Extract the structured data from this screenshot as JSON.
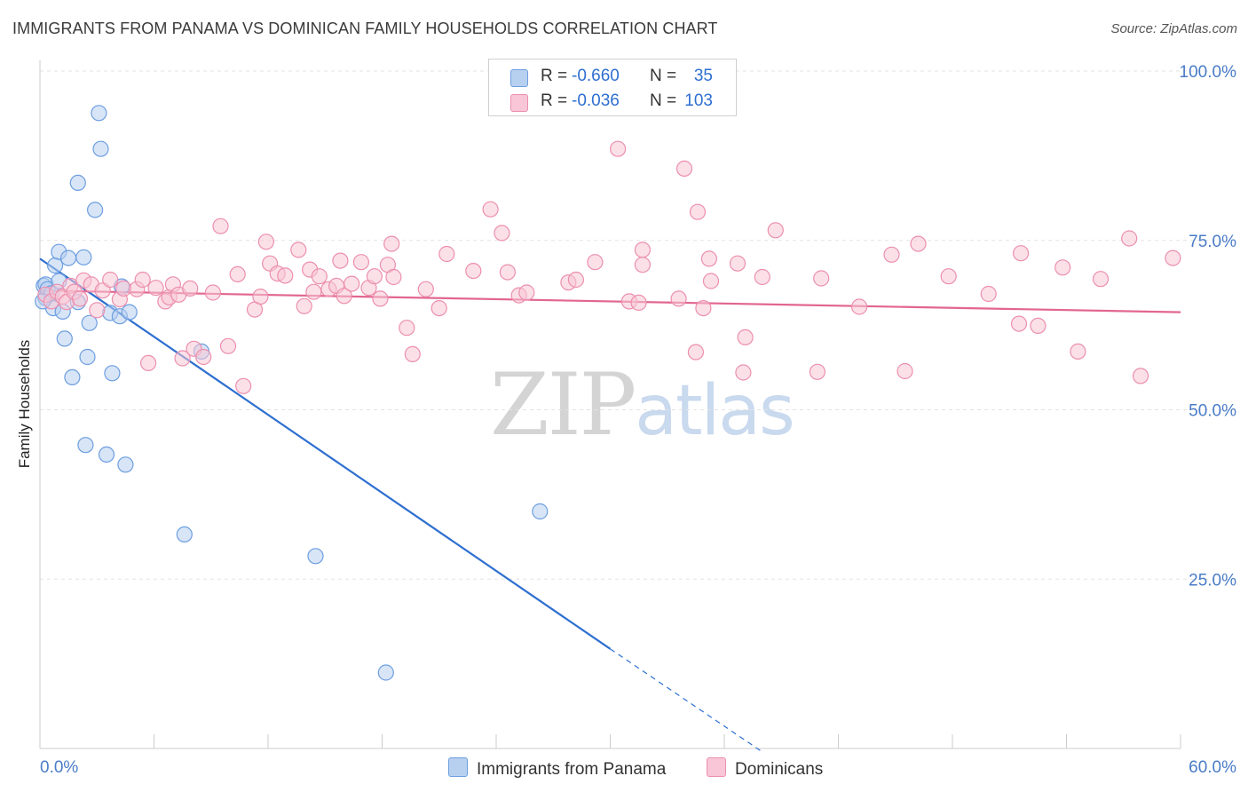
{
  "title": "IMMIGRANTS FROM PANAMA VS DOMINICAN FAMILY HOUSEHOLDS CORRELATION CHART",
  "source": "Source: ZipAtlas.com",
  "watermark": {
    "zip": "ZIP",
    "atlas": "atlas"
  },
  "legend": {
    "rows": [
      {
        "r_label": "R =",
        "r_value": "-0.660",
        "n_label": "N =",
        "n_value": "35"
      },
      {
        "r_label": "R =",
        "r_value": "-0.036",
        "n_label": "N =",
        "n_value": "103"
      }
    ]
  },
  "colors": {
    "blue_fill": "#b8d0f0",
    "blue_stroke": "#6d9ee0",
    "blue_line": "#2e6fd0",
    "blue_text": "#2e6fd0",
    "pink_fill": "#f8c6d6",
    "pink_stroke": "#ec8fae",
    "pink_line": "#e2668f",
    "axis_text": "#4a7cc7",
    "grid": "#e3e3e3"
  },
  "chart_data": {
    "type": "scatter",
    "title": "IMMIGRANTS FROM PANAMA VS DOMINICAN FAMILY HOUSEHOLDS CORRELATION CHART",
    "xlabel": "",
    "ylabel": "Family Households",
    "xlim": [
      0,
      60
    ],
    "ylim": [
      0,
      105
    ],
    "x_tick_labels": [
      "0.0%",
      "60.0%"
    ],
    "y_ticks": [
      25,
      50,
      75,
      100
    ],
    "y_tick_labels": [
      "25.0%",
      "50.0%",
      "75.0%",
      "100.0%"
    ],
    "grid": true,
    "legend_position": "bottom-center",
    "series": [
      {
        "name": "Immigrants from Panama",
        "color": "blue",
        "r": -0.66,
        "n": 35,
        "trend": {
          "x0": 0.0,
          "y0": 72.3,
          "x1": 30.0,
          "y1": 14.7,
          "dashed_to_x": 38.0,
          "dashed_to_y": -0.5
        },
        "points": [
          [
            0.2,
            68.3
          ],
          [
            0.3,
            68.5
          ],
          [
            0.3,
            66.5
          ],
          [
            0.4,
            67.8
          ],
          [
            0.6,
            67.2
          ],
          [
            0.7,
            65.0
          ],
          [
            0.8,
            71.3
          ],
          [
            1.0,
            69.0
          ],
          [
            1.0,
            73.3
          ],
          [
            1.2,
            64.5
          ],
          [
            1.3,
            60.5
          ],
          [
            1.5,
            72.4
          ],
          [
            1.7,
            54.8
          ],
          [
            2.0,
            83.5
          ],
          [
            2.0,
            65.9
          ],
          [
            2.3,
            72.5
          ],
          [
            2.4,
            44.8
          ],
          [
            2.5,
            57.8
          ],
          [
            2.6,
            62.8
          ],
          [
            2.9,
            79.5
          ],
          [
            3.1,
            93.8
          ],
          [
            3.2,
            88.5
          ],
          [
            3.5,
            43.4
          ],
          [
            3.7,
            64.3
          ],
          [
            3.8,
            55.4
          ],
          [
            4.2,
            63.8
          ],
          [
            4.3,
            68.2
          ],
          [
            4.5,
            41.9
          ],
          [
            4.7,
            64.4
          ],
          [
            7.6,
            31.6
          ],
          [
            8.5,
            58.6
          ],
          [
            14.5,
            28.4
          ],
          [
            18.2,
            11.2
          ],
          [
            26.3,
            35.0
          ],
          [
            0.15,
            66.0
          ]
        ]
      },
      {
        "name": "Dominicans",
        "color": "pink",
        "r": -0.036,
        "n": 103,
        "trend": {
          "x0": 0.0,
          "y0": 67.6,
          "x1": 60.0,
          "y1": 64.4
        },
        "points": [
          [
            0.3,
            67.0
          ],
          [
            0.6,
            66.0
          ],
          [
            0.9,
            67.4
          ],
          [
            1.2,
            66.7
          ],
          [
            1.4,
            65.9
          ],
          [
            1.6,
            68.3
          ],
          [
            1.8,
            67.4
          ],
          [
            2.1,
            66.4
          ],
          [
            2.3,
            69.1
          ],
          [
            2.7,
            68.5
          ],
          [
            3.0,
            64.7
          ],
          [
            3.3,
            67.6
          ],
          [
            3.7,
            69.2
          ],
          [
            4.2,
            66.3
          ],
          [
            4.4,
            67.9
          ],
          [
            5.1,
            67.8
          ],
          [
            5.4,
            69.2
          ],
          [
            5.7,
            56.9
          ],
          [
            6.1,
            68.0
          ],
          [
            6.6,
            66.0
          ],
          [
            6.8,
            66.6
          ],
          [
            7.0,
            68.5
          ],
          [
            7.3,
            67.0
          ],
          [
            7.5,
            57.6
          ],
          [
            7.9,
            67.9
          ],
          [
            8.1,
            59.0
          ],
          [
            8.6,
            57.8
          ],
          [
            9.1,
            67.3
          ],
          [
            9.5,
            77.1
          ],
          [
            9.9,
            59.4
          ],
          [
            10.4,
            70.0
          ],
          [
            10.7,
            53.5
          ],
          [
            11.3,
            64.8
          ],
          [
            11.6,
            66.7
          ],
          [
            11.9,
            74.8
          ],
          [
            12.1,
            71.6
          ],
          [
            12.5,
            70.1
          ],
          [
            12.9,
            69.8
          ],
          [
            13.6,
            73.6
          ],
          [
            13.9,
            65.3
          ],
          [
            14.2,
            70.7
          ],
          [
            14.4,
            67.4
          ],
          [
            14.7,
            69.7
          ],
          [
            15.2,
            67.8
          ],
          [
            15.6,
            68.3
          ],
          [
            15.8,
            72.0
          ],
          [
            16.0,
            66.8
          ],
          [
            16.4,
            68.6
          ],
          [
            16.9,
            71.8
          ],
          [
            17.3,
            68.0
          ],
          [
            17.6,
            69.7
          ],
          [
            17.9,
            66.4
          ],
          [
            18.3,
            71.4
          ],
          [
            18.5,
            74.5
          ],
          [
            18.6,
            69.6
          ],
          [
            19.3,
            62.1
          ],
          [
            19.6,
            58.2
          ],
          [
            20.3,
            67.8
          ],
          [
            21.0,
            65.0
          ],
          [
            21.4,
            73.0
          ],
          [
            22.8,
            70.5
          ],
          [
            23.7,
            79.6
          ],
          [
            24.3,
            76.1
          ],
          [
            24.6,
            70.3
          ],
          [
            25.2,
            66.9
          ],
          [
            25.6,
            67.3
          ],
          [
            27.8,
            68.8
          ],
          [
            28.2,
            69.2
          ],
          [
            29.2,
            71.8
          ],
          [
            31.0,
            66.0
          ],
          [
            31.5,
            65.8
          ],
          [
            33.6,
            66.4
          ],
          [
            34.5,
            58.5
          ],
          [
            34.9,
            65.0
          ],
          [
            35.2,
            72.3
          ],
          [
            35.3,
            69.0
          ],
          [
            36.7,
            71.6
          ],
          [
            37.0,
            55.5
          ],
          [
            38.0,
            69.6
          ],
          [
            37.1,
            60.7
          ],
          [
            38.7,
            76.5
          ],
          [
            40.9,
            55.6
          ],
          [
            41.1,
            69.4
          ],
          [
            43.1,
            65.2
          ],
          [
            44.8,
            72.9
          ],
          [
            45.5,
            55.7
          ],
          [
            46.2,
            74.5
          ],
          [
            47.8,
            69.7
          ],
          [
            49.9,
            67.1
          ],
          [
            51.5,
            62.7
          ],
          [
            51.6,
            73.1
          ],
          [
            52.5,
            62.4
          ],
          [
            53.8,
            71.0
          ],
          [
            54.6,
            58.6
          ],
          [
            57.3,
            75.3
          ],
          [
            57.9,
            55.0
          ],
          [
            59.6,
            72.4
          ],
          [
            55.8,
            69.3
          ],
          [
            30.4,
            88.5
          ],
          [
            31.7,
            73.6
          ],
          [
            34.6,
            79.2
          ],
          [
            33.9,
            85.6
          ],
          [
            31.7,
            71.4
          ]
        ]
      }
    ]
  },
  "bottom_legend": [
    {
      "label": "Immigrants from Panama"
    },
    {
      "label": "Dominicans"
    }
  ]
}
